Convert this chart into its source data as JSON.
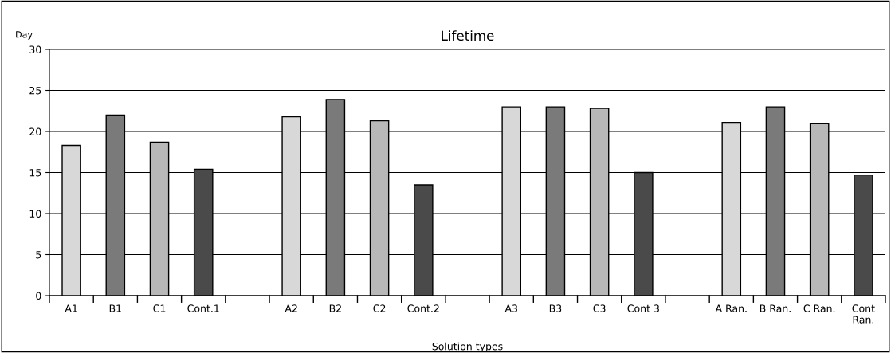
{
  "chart_data": {
    "type": "bar",
    "title": "Lifetime",
    "xlabel": "Solution types",
    "ylabel": "Day",
    "categories": [
      "A1",
      "B1",
      "C1",
      "Cont.1",
      null,
      "A2",
      "B2",
      "C2",
      "Cont.2",
      null,
      "A3",
      "B3",
      "C3",
      "Cont 3",
      null,
      "A Ran.",
      "B Ran.",
      "C Ran.",
      "Cont\nRan."
    ],
    "values": [
      18.3,
      22.0,
      18.7,
      15.4,
      null,
      21.8,
      23.9,
      21.3,
      13.5,
      null,
      23.0,
      23.0,
      22.8,
      15.0,
      null,
      21.1,
      23.0,
      21.0,
      14.7
    ],
    "colors": [
      "#d8d8d8",
      "#7a7a7a",
      "#b8b8b8",
      "#4a4a4a",
      null,
      "#d8d8d8",
      "#7a7a7a",
      "#b8b8b8",
      "#4a4a4a",
      null,
      "#d8d8d8",
      "#7a7a7a",
      "#b8b8b8",
      "#4a4a4a",
      null,
      "#d8d8d8",
      "#7a7a7a",
      "#b8b8b8",
      "#4a4a4a"
    ],
    "ylim": [
      0,
      30
    ],
    "yticks": [
      0,
      5,
      10,
      15,
      20,
      25,
      30
    ],
    "grid": "y",
    "legend": false
  }
}
